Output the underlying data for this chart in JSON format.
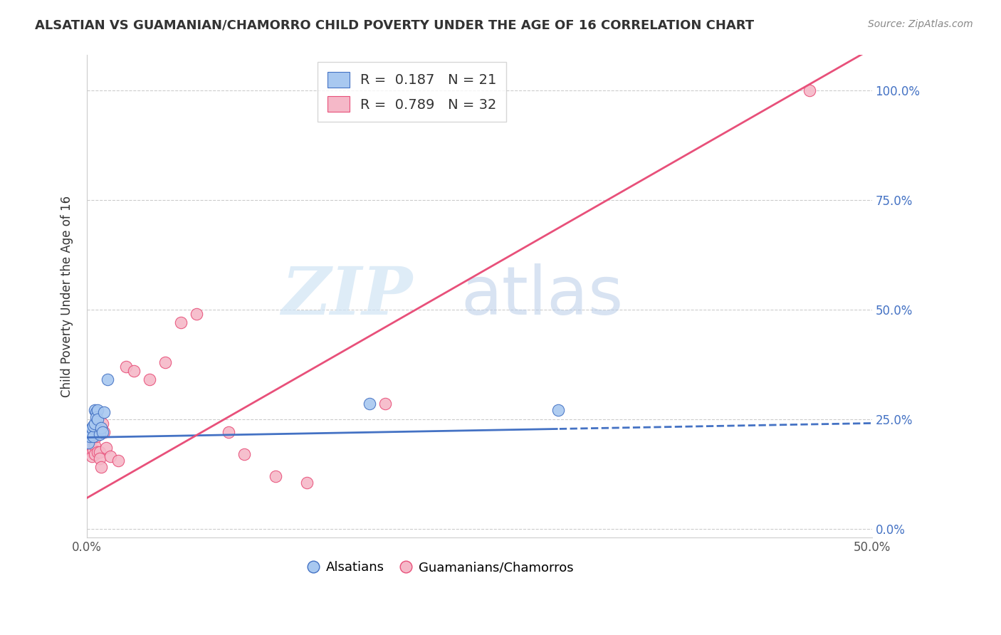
{
  "title": "ALSATIAN VS GUAMANIAN/CHAMORRO CHILD POVERTY UNDER THE AGE OF 16 CORRELATION CHART",
  "source": "Source: ZipAtlas.com",
  "ylabel": "Child Poverty Under the Age of 16",
  "xlim": [
    0.0,
    0.5
  ],
  "ylim": [
    -0.02,
    1.08
  ],
  "y_tick_positions": [
    0.0,
    0.25,
    0.5,
    0.75,
    1.0
  ],
  "y_tick_labels": [
    "0.0%",
    "25.0%",
    "50.0%",
    "75.0%",
    "100.0%"
  ],
  "x_tick_positions": [
    0.0,
    0.1,
    0.2,
    0.3,
    0.4,
    0.5
  ],
  "x_tick_labels_show": [
    "0.0%",
    "",
    "",
    "",
    "",
    "50.0%"
  ],
  "blue_R": 0.187,
  "blue_N": 21,
  "pink_R": 0.789,
  "pink_N": 32,
  "blue_scatter_color": "#A8C8F0",
  "pink_scatter_color": "#F5B8C8",
  "blue_line_color": "#4472C4",
  "pink_line_color": "#E8507A",
  "watermark_zip": "ZIP",
  "watermark_atlas": "atlas",
  "alsatian_x": [
    0.001,
    0.001,
    0.002,
    0.002,
    0.003,
    0.003,
    0.004,
    0.004,
    0.005,
    0.005,
    0.006,
    0.006,
    0.007,
    0.007,
    0.008,
    0.009,
    0.01,
    0.011,
    0.013,
    0.18,
    0.3
  ],
  "alsatian_y": [
    0.195,
    0.215,
    0.21,
    0.225,
    0.215,
    0.23,
    0.21,
    0.235,
    0.24,
    0.27,
    0.265,
    0.255,
    0.27,
    0.25,
    0.215,
    0.23,
    0.22,
    0.265,
    0.34,
    0.285,
    0.27
  ],
  "guamanian_x": [
    0.001,
    0.001,
    0.002,
    0.002,
    0.003,
    0.003,
    0.004,
    0.005,
    0.005,
    0.006,
    0.007,
    0.007,
    0.008,
    0.008,
    0.009,
    0.01,
    0.011,
    0.012,
    0.015,
    0.02,
    0.025,
    0.03,
    0.04,
    0.05,
    0.06,
    0.07,
    0.09,
    0.1,
    0.12,
    0.14,
    0.19,
    0.46
  ],
  "guamanian_y": [
    0.19,
    0.21,
    0.195,
    0.18,
    0.175,
    0.165,
    0.18,
    0.19,
    0.17,
    0.21,
    0.22,
    0.175,
    0.175,
    0.16,
    0.14,
    0.24,
    0.22,
    0.185,
    0.165,
    0.155,
    0.37,
    0.36,
    0.34,
    0.38,
    0.47,
    0.49,
    0.22,
    0.17,
    0.12,
    0.105,
    0.285,
    1.0
  ],
  "blue_line_slope": 0.065,
  "blue_line_intercept": 0.208,
  "pink_line_slope": 2.05,
  "pink_line_intercept": 0.07
}
